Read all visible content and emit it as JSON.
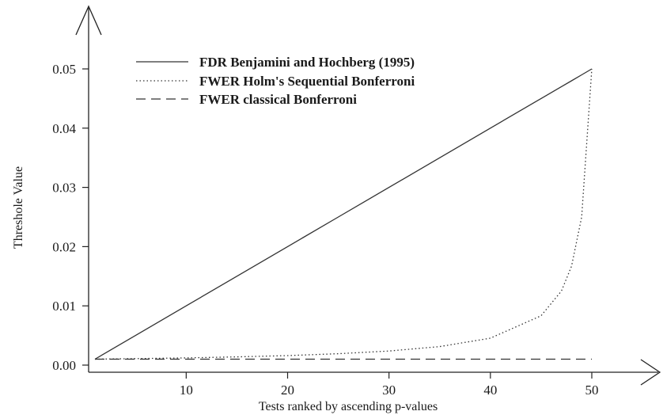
{
  "chart_data": {
    "type": "line",
    "title": "",
    "xlabel": "Tests ranked by ascending p-values",
    "ylabel": "Threshole Value",
    "xlim": [
      1,
      52
    ],
    "ylim": [
      0,
      0.05
    ],
    "x_ticks": [
      10,
      20,
      30,
      40,
      50
    ],
    "y_ticks": [
      0.0,
      0.01,
      0.02,
      0.03,
      0.04,
      0.05
    ],
    "x_tick_labels": [
      "10",
      "20",
      "30",
      "40",
      "50"
    ],
    "y_tick_labels": [
      "0.00",
      "0.01",
      "0.02",
      "0.03",
      "0.04",
      "0.05"
    ],
    "grid": false,
    "legend_position": "top-left",
    "alpha": 0.05,
    "m": 50,
    "x": [
      1,
      5,
      10,
      15,
      20,
      25,
      30,
      35,
      40,
      45,
      47,
      48,
      49,
      50
    ],
    "series": [
      {
        "name": "FDR Benjamini and Hochberg (1995)",
        "style": "solid",
        "values": [
          0.001,
          0.005,
          0.01,
          0.015,
          0.02,
          0.025,
          0.03,
          0.035,
          0.04,
          0.045,
          0.047,
          0.048,
          0.049,
          0.05
        ]
      },
      {
        "name": "FWER Holm's Sequential Bonferroni",
        "style": "dotted",
        "values": [
          0.001,
          0.00109,
          0.00122,
          0.00139,
          0.00161,
          0.00192,
          0.00238,
          0.00313,
          0.00455,
          0.00833,
          0.0125,
          0.0167,
          0.025,
          0.05
        ]
      },
      {
        "name": "FWER classical Bonferroni",
        "style": "dashed",
        "values": [
          0.001,
          0.001,
          0.001,
          0.001,
          0.001,
          0.001,
          0.001,
          0.001,
          0.001,
          0.001,
          0.001,
          0.001,
          0.001,
          0.001
        ]
      }
    ]
  }
}
